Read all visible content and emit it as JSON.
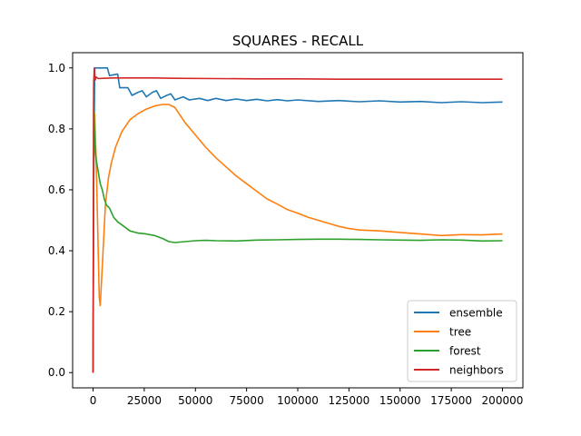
{
  "chart_data": {
    "type": "line",
    "title": "SQUARES - RECALL",
    "xlabel": "",
    "ylabel": "",
    "xlim": [
      -10000,
      210000
    ],
    "ylim": [
      -0.05,
      1.05
    ],
    "x_ticks": [
      0,
      25000,
      50000,
      75000,
      100000,
      125000,
      150000,
      175000,
      200000
    ],
    "y_ticks": [
      0.0,
      0.2,
      0.4,
      0.6,
      0.8,
      1.0
    ],
    "grid": false,
    "legend_position": "lower-right",
    "series": [
      {
        "name": "ensemble",
        "color": "#1f77b4",
        "points": [
          [
            0,
            0
          ],
          [
            300,
            0.6
          ],
          [
            800,
            1.0
          ],
          [
            7000,
            1.0
          ],
          [
            8000,
            0.975
          ],
          [
            12000,
            0.98
          ],
          [
            13000,
            0.935
          ],
          [
            17000,
            0.935
          ],
          [
            19000,
            0.91
          ],
          [
            22000,
            0.92
          ],
          [
            24000,
            0.925
          ],
          [
            26000,
            0.905
          ],
          [
            29000,
            0.92
          ],
          [
            31000,
            0.925
          ],
          [
            33000,
            0.9
          ],
          [
            36000,
            0.91
          ],
          [
            38000,
            0.915
          ],
          [
            40000,
            0.895
          ],
          [
            44000,
            0.905
          ],
          [
            47000,
            0.895
          ],
          [
            52000,
            0.9
          ],
          [
            56000,
            0.893
          ],
          [
            60000,
            0.9
          ],
          [
            65000,
            0.893
          ],
          [
            70000,
            0.898
          ],
          [
            75000,
            0.893
          ],
          [
            80000,
            0.897
          ],
          [
            85000,
            0.892
          ],
          [
            90000,
            0.896
          ],
          [
            95000,
            0.892
          ],
          [
            100000,
            0.895
          ],
          [
            110000,
            0.89
          ],
          [
            120000,
            0.893
          ],
          [
            130000,
            0.889
          ],
          [
            140000,
            0.892
          ],
          [
            150000,
            0.888
          ],
          [
            160000,
            0.89
          ],
          [
            170000,
            0.886
          ],
          [
            180000,
            0.889
          ],
          [
            190000,
            0.886
          ],
          [
            200000,
            0.888
          ]
        ]
      },
      {
        "name": "tree",
        "color": "#ff7f0e",
        "points": [
          [
            0,
            0
          ],
          [
            300,
            0.65
          ],
          [
            800,
            0.85
          ],
          [
            1500,
            0.7
          ],
          [
            2500,
            0.4
          ],
          [
            3000,
            0.25
          ],
          [
            3500,
            0.22
          ],
          [
            4500,
            0.35
          ],
          [
            6000,
            0.55
          ],
          [
            7500,
            0.64
          ],
          [
            9000,
            0.69
          ],
          [
            11000,
            0.74
          ],
          [
            14000,
            0.79
          ],
          [
            18000,
            0.83
          ],
          [
            22000,
            0.85
          ],
          [
            26000,
            0.865
          ],
          [
            30000,
            0.875
          ],
          [
            34000,
            0.88
          ],
          [
            37000,
            0.88
          ],
          [
            40000,
            0.87
          ],
          [
            45000,
            0.82
          ],
          [
            50000,
            0.78
          ],
          [
            55000,
            0.74
          ],
          [
            60000,
            0.705
          ],
          [
            65000,
            0.675
          ],
          [
            70000,
            0.645
          ],
          [
            75000,
            0.62
          ],
          [
            80000,
            0.595
          ],
          [
            85000,
            0.57
          ],
          [
            90000,
            0.553
          ],
          [
            95000,
            0.535
          ],
          [
            100000,
            0.523
          ],
          [
            105000,
            0.51
          ],
          [
            110000,
            0.5
          ],
          [
            115000,
            0.49
          ],
          [
            120000,
            0.48
          ],
          [
            125000,
            0.473
          ],
          [
            130000,
            0.468
          ],
          [
            140000,
            0.465
          ],
          [
            150000,
            0.46
          ],
          [
            160000,
            0.455
          ],
          [
            170000,
            0.45
          ],
          [
            180000,
            0.453
          ],
          [
            190000,
            0.452
          ],
          [
            200000,
            0.455
          ]
        ]
      },
      {
        "name": "forest",
        "color": "#2ca02c",
        "points": [
          [
            0,
            0
          ],
          [
            300,
            0.9
          ],
          [
            800,
            0.75
          ],
          [
            1500,
            0.7
          ],
          [
            2500,
            0.66
          ],
          [
            3500,
            0.62
          ],
          [
            4500,
            0.6
          ],
          [
            5500,
            0.57
          ],
          [
            6500,
            0.55
          ],
          [
            8000,
            0.54
          ],
          [
            10000,
            0.51
          ],
          [
            12000,
            0.495
          ],
          [
            15000,
            0.48
          ],
          [
            18000,
            0.465
          ],
          [
            22000,
            0.458
          ],
          [
            26000,
            0.455
          ],
          [
            30000,
            0.45
          ],
          [
            34000,
            0.44
          ],
          [
            37000,
            0.43
          ],
          [
            40000,
            0.427
          ],
          [
            45000,
            0.43
          ],
          [
            50000,
            0.433
          ],
          [
            55000,
            0.434
          ],
          [
            60000,
            0.433
          ],
          [
            70000,
            0.432
          ],
          [
            80000,
            0.435
          ],
          [
            90000,
            0.436
          ],
          [
            100000,
            0.437
          ],
          [
            110000,
            0.438
          ],
          [
            120000,
            0.438
          ],
          [
            130000,
            0.437
          ],
          [
            140000,
            0.436
          ],
          [
            150000,
            0.435
          ],
          [
            160000,
            0.434
          ],
          [
            170000,
            0.436
          ],
          [
            180000,
            0.435
          ],
          [
            190000,
            0.432
          ],
          [
            200000,
            0.433
          ]
        ]
      },
      {
        "name": "neighbors",
        "color": "#d62728",
        "points": [
          [
            0,
            0
          ],
          [
            300,
            0.95
          ],
          [
            600,
            1.0
          ],
          [
            1000,
            0.96
          ],
          [
            1500,
            0.97
          ],
          [
            2500,
            0.965
          ],
          [
            5000,
            0.966
          ],
          [
            10000,
            0.967
          ],
          [
            20000,
            0.967
          ],
          [
            30000,
            0.967
          ],
          [
            40000,
            0.966
          ],
          [
            60000,
            0.965
          ],
          [
            80000,
            0.964
          ],
          [
            100000,
            0.964
          ],
          [
            120000,
            0.963
          ],
          [
            140000,
            0.963
          ],
          [
            160000,
            0.963
          ],
          [
            180000,
            0.963
          ],
          [
            200000,
            0.963
          ]
        ]
      }
    ]
  }
}
